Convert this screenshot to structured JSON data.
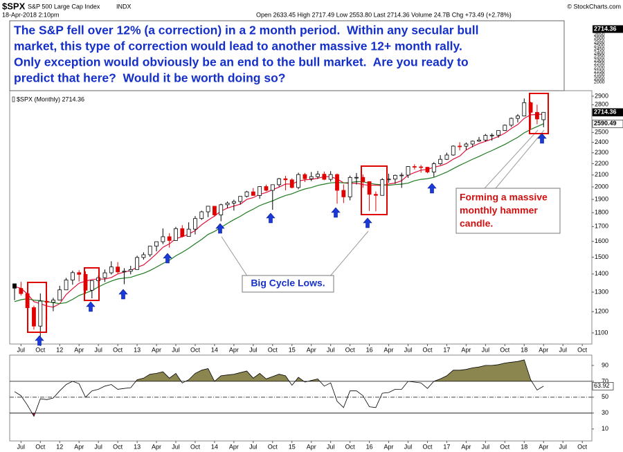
{
  "header": {
    "symbol": "$SPX",
    "name": "S&P 500 Large Cap Index",
    "exchange": "INDX",
    "date": "18-Apr-2018 2:10pm",
    "quote": "Open 2633.45 High 2717.49 Low 2553.80 Last 2714.36 Volume 24.7B Chg +73.49 (+2.78%)",
    "copyright": "© StockCharts.com"
  },
  "annotation": {
    "lines": [
      "The S&P fell over 12% (a correction) in a 2 month period.  Within any secular bull",
      "market, this type of correction would lead to another massive 12+ month rally.",
      "Only exception would obviously be an end to the bull market.  Are you ready to",
      "predict that here?  Would it be worth doing so?"
    ],
    "axis_labels": [
      "2714.36",
      "2650",
      "2600",
      "2550",
      "2500",
      "2450",
      "2400",
      "2350",
      "2300",
      "2250",
      "2200",
      "2150",
      "2100",
      "2050",
      "2000"
    ]
  },
  "callouts": {
    "cycle_lows": "Big Cycle Lows.",
    "hammer": [
      "Forming a massive",
      "monthly hammer",
      "candle."
    ]
  },
  "chart_data": [
    {
      "type": "candlestick",
      "legend": "$SPX (Monthly) 2714.36",
      "log_scale": true,
      "up_color": "#000000",
      "down_color": "#e00000",
      "x": [
        "2011-06",
        "2011-07",
        "2011-08",
        "2011-09",
        "2011-10",
        "2011-11",
        "2011-12",
        "2012-01",
        "2012-02",
        "2012-03",
        "2012-04",
        "2012-05",
        "2012-06",
        "2012-07",
        "2012-08",
        "2012-09",
        "2012-10",
        "2012-11",
        "2012-12",
        "2013-01",
        "2013-02",
        "2013-03",
        "2013-04",
        "2013-05",
        "2013-06",
        "2013-07",
        "2013-08",
        "2013-09",
        "2013-10",
        "2013-11",
        "2013-12",
        "2014-01",
        "2014-02",
        "2014-03",
        "2014-04",
        "2014-05",
        "2014-06",
        "2014-07",
        "2014-08",
        "2014-09",
        "2014-10",
        "2014-11",
        "2014-12",
        "2015-01",
        "2015-02",
        "2015-03",
        "2015-04",
        "2015-05",
        "2015-06",
        "2015-07",
        "2015-08",
        "2015-09",
        "2015-10",
        "2015-11",
        "2015-12",
        "2016-01",
        "2016-02",
        "2016-03",
        "2016-04",
        "2016-05",
        "2016-06",
        "2016-07",
        "2016-08",
        "2016-09",
        "2016-10",
        "2016-11",
        "2016-12",
        "2017-01",
        "2017-02",
        "2017-03",
        "2017-04",
        "2017-05",
        "2017-06",
        "2017-07",
        "2017-08",
        "2017-09",
        "2017-10",
        "2017-11",
        "2017-12",
        "2018-01",
        "2018-02",
        "2018-03",
        "2018-04"
      ],
      "open": [
        1345,
        1320,
        1292,
        1220,
        1131,
        1252,
        1247,
        1258,
        1312,
        1366,
        1408,
        1398,
        1310,
        1362,
        1379,
        1407,
        1441,
        1412,
        1416,
        1426,
        1498,
        1515,
        1569,
        1598,
        1631,
        1606,
        1686,
        1633,
        1682,
        1757,
        1806,
        1848,
        1783,
        1859,
        1872,
        1884,
        1924,
        1960,
        1931,
        2003,
        1972,
        2018,
        2068,
        2059,
        1995,
        2104,
        2068,
        2086,
        2107,
        2063,
        2104,
        1972,
        1920,
        2079,
        2080,
        2044,
        1940,
        1932,
        2060,
        2065,
        2097,
        2099,
        2174,
        2171,
        2168,
        2126,
        2199,
        2239,
        2279,
        2364,
        2363,
        2384,
        2412,
        2423,
        2470,
        2472,
        2519,
        2575,
        2648,
        2674,
        2824,
        2714,
        2633.45
      ],
      "high": [
        1345,
        1356,
        1307,
        1230,
        1293,
        1277,
        1270,
        1334,
        1378,
        1419,
        1422,
        1415,
        1363,
        1392,
        1426,
        1475,
        1470,
        1434,
        1448,
        1509,
        1530,
        1570,
        1598,
        1687,
        1655,
        1698,
        1710,
        1730,
        1775,
        1814,
        1849,
        1850,
        1867,
        1884,
        1898,
        1924,
        1968,
        1991,
        2005,
        2019,
        2019,
        2075,
        2093,
        2072,
        2120,
        2118,
        2126,
        2135,
        2130,
        2133,
        2113,
        2021,
        2094,
        2117,
        2104,
        2044,
        1963,
        2073,
        2111,
        2103,
        2120,
        2178,
        2194,
        2188,
        2170,
        2214,
        2278,
        2301,
        2371,
        2401,
        2399,
        2418,
        2454,
        2484,
        2491,
        2519,
        2582,
        2657,
        2695,
        2873,
        2835,
        2801,
        2717.49
      ],
      "low": [
        1258,
        1282,
        1101,
        1115,
        1075,
        1158,
        1202,
        1258,
        1312,
        1340,
        1357,
        1291,
        1267,
        1325,
        1355,
        1397,
        1403,
        1343,
        1398,
        1426,
        1485,
        1502,
        1536,
        1582,
        1560,
        1605,
        1627,
        1633,
        1646,
        1747,
        1767,
        1770,
        1738,
        1834,
        1815,
        1860,
        1915,
        1930,
        1905,
        1964,
        1821,
        2001,
        1972,
        1988,
        1981,
        2040,
        2048,
        2067,
        2056,
        2044,
        1867,
        1872,
        1893,
        2019,
        1993,
        1812,
        1810,
        1932,
        2034,
        2025,
        1992,
        2075,
        2148,
        2120,
        2115,
        2084,
        2188,
        2234,
        2272,
        2322,
        2328,
        2353,
        2405,
        2407,
        2417,
        2446,
        2515,
        2557,
        2605,
        2670,
        2533,
        2585,
        2553.8
      ],
      "close": [
        1321,
        1292,
        1219,
        1131,
        1253,
        1247,
        1258,
        1312,
        1366,
        1408,
        1398,
        1310,
        1362,
        1379,
        1407,
        1441,
        1412,
        1416,
        1426,
        1498,
        1515,
        1569,
        1598,
        1631,
        1606,
        1686,
        1633,
        1682,
        1757,
        1806,
        1848,
        1783,
        1859,
        1872,
        1884,
        1924,
        1960,
        1931,
        2003,
        1972,
        2018,
        2068,
        2059,
        1995,
        2104,
        2068,
        2086,
        2107,
        2063,
        2104,
        1972,
        1920,
        2079,
        2080,
        2044,
        1940,
        1932,
        2060,
        2065,
        2097,
        2099,
        2174,
        2171,
        2168,
        2126,
        2199,
        2239,
        2279,
        2364,
        2363,
        2384,
        2412,
        2423,
        2470,
        2472,
        2519,
        2575,
        2648,
        2674,
        2824,
        2714,
        2641,
        2714.36
      ],
      "series": [
        {
          "color": "#e0103a",
          "values": [
            1330,
            1320,
            1290,
            1250,
            1240,
            1228,
            1222,
            1240,
            1287,
            1318,
            1348,
            1359,
            1369,
            1371,
            1371,
            1380,
            1400,
            1411,
            1420,
            1439,
            1453,
            1485,
            1521,
            1562,
            1584,
            1618,
            1631,
            1648,
            1673,
            1713,
            1745,
            1775,
            1811,
            1834,
            1849,
            1864,
            1900,
            1914,
            1940,
            1954,
            1977,
            1998,
            2024,
            2023,
            2049,
            2059,
            2062,
            2072,
            2086,
            2086,
            2066,
            2033,
            2028,
            2031,
            2019,
            2013,
            2015,
            2011,
            2024,
            2032,
            2051,
            2099,
            2121,
            2142,
            2148,
            2168,
            2181,
            2202,
            2241,
            2269,
            2326,
            2360,
            2389,
            2410,
            2432,
            2459,
            2492,
            2541,
            2582,
            2648,
            2687,
            2690,
            2695
          ]
        },
        {
          "color": "#1e7a1e",
          "values": [
            1250,
            1260,
            1265,
            1258,
            1255,
            1250,
            1245,
            1240,
            1245,
            1262,
            1282,
            1295,
            1308,
            1328,
            1345,
            1360,
            1372,
            1377,
            1381,
            1393,
            1404,
            1420,
            1440,
            1462,
            1481,
            1508,
            1530,
            1555,
            1585,
            1613,
            1646,
            1667,
            1694,
            1722,
            1749,
            1773,
            1802,
            1826,
            1853,
            1872,
            1889,
            1911,
            1931,
            1945,
            1965,
            1983,
            1995,
            2012,
            2023,
            2033,
            2037,
            2033,
            2036,
            2044,
            2043,
            2030,
            2022,
            2017,
            2014,
            2019,
            2023,
            2031,
            2051,
            2063,
            2069,
            2080,
            2102,
            2125,
            2155,
            2185,
            2212,
            2240,
            2265,
            2295,
            2321,
            2350,
            2380,
            2415,
            2450,
            2496,
            2531,
            2560,
            2590.49
          ]
        }
      ],
      "ylim": [
        1051,
        2966
      ],
      "yticks": [
        1100,
        1200,
        1300,
        1400,
        1500,
        1600,
        1700,
        1800,
        1900,
        2000,
        2100,
        2200,
        2300,
        2400,
        2500,
        2800,
        2900
      ],
      "xticks": [
        {
          "value": "2011-07",
          "label": "Jul"
        },
        {
          "value": "2011-10",
          "label": "Oct"
        },
        {
          "value": "2012-01",
          "label": "12"
        },
        {
          "value": "2012-04",
          "label": "Apr"
        },
        {
          "value": "2012-07",
          "label": "Jul"
        },
        {
          "value": "2012-10",
          "label": "Oct"
        },
        {
          "value": "2013-01",
          "label": "13"
        },
        {
          "value": "2013-04",
          "label": "Apr"
        },
        {
          "value": "2013-07",
          "label": "Jul"
        },
        {
          "value": "2013-10",
          "label": "Oct"
        },
        {
          "value": "2014-01",
          "label": "14"
        },
        {
          "value": "2014-04",
          "label": "Apr"
        },
        {
          "value": "2014-07",
          "label": "Jul"
        },
        {
          "value": "2014-10",
          "label": "Oct"
        },
        {
          "value": "2015-01",
          "label": "15"
        },
        {
          "value": "2015-04",
          "label": "Apr"
        },
        {
          "value": "2015-07",
          "label": "Jul"
        },
        {
          "value": "2015-10",
          "label": "Oct"
        },
        {
          "value": "2016-01",
          "label": "16"
        },
        {
          "value": "2016-04",
          "label": "Apr"
        },
        {
          "value": "2016-07",
          "label": "Jul"
        },
        {
          "value": "2016-10",
          "label": "Oct"
        },
        {
          "value": "2017-01",
          "label": "17"
        },
        {
          "value": "2017-04",
          "label": "Apr"
        },
        {
          "value": "2017-07",
          "label": "Jul"
        },
        {
          "value": "2017-10",
          "label": "Oct"
        },
        {
          "value": "2018-01",
          "label": "18"
        },
        {
          "value": "2018-04",
          "label": "Apr"
        },
        {
          "value": "2018-07",
          "label": "Jul"
        },
        {
          "value": "2018-10",
          "label": "Oct"
        }
      ]
    },
    {
      "type": "line",
      "color": "#000000",
      "fill_above_color": "#8b8650",
      "fill_below_color": "#c0143c",
      "values": [
        57,
        52,
        40,
        26,
        48,
        47,
        49,
        58,
        66,
        70,
        67,
        50,
        58,
        60,
        64,
        66,
        60,
        61,
        62,
        72,
        74,
        79,
        80,
        82,
        74,
        80,
        68,
        72,
        80,
        84,
        86,
        70,
        77,
        78,
        79,
        81,
        83,
        74,
        80,
        73,
        76,
        79,
        77,
        65,
        75,
        69,
        71,
        73,
        64,
        68,
        45,
        37,
        58,
        58,
        52,
        38,
        37,
        55,
        56,
        60,
        60,
        70,
        69,
        68,
        61,
        70,
        73,
        77,
        84,
        84,
        85,
        87,
        88,
        90,
        90,
        91,
        93,
        94,
        95,
        97,
        72,
        59,
        63.92
      ],
      "ylim": [
        -5,
        103
      ],
      "yticks": [
        10,
        30,
        50,
        70,
        90
      ]
    }
  ]
}
